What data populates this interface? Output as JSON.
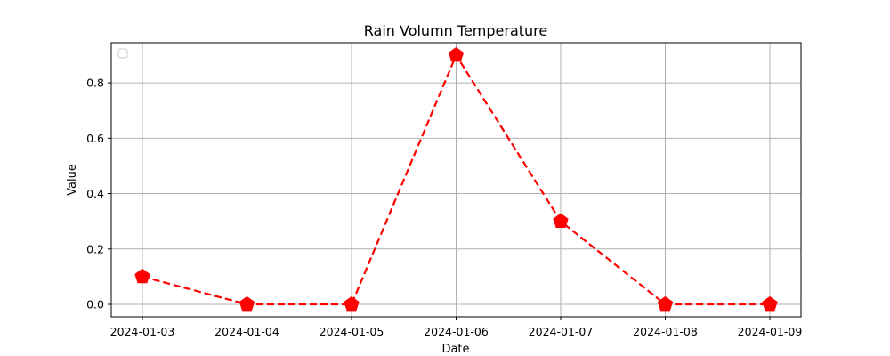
{
  "chart_data": {
    "type": "line",
    "title": "Rain Volumn Temperature",
    "xlabel": "Date",
    "ylabel": "Value",
    "categories": [
      "2024-01-03",
      "2024-01-04",
      "2024-01-05",
      "2024-01-06",
      "2024-01-07",
      "2024-01-08",
      "2024-01-09"
    ],
    "series": [
      {
        "values": [
          0.1,
          0.0,
          0.0,
          0.9,
          0.3,
          0.0,
          0.0
        ],
        "color": "#ff0000",
        "line_style": "dashed",
        "marker": "pentagon"
      }
    ],
    "ylim": [
      -0.045,
      0.945
    ],
    "y_ticks": [
      "0.0",
      "0.2",
      "0.4",
      "0.6",
      "0.8"
    ],
    "grid": true,
    "legend": "top-left (empty)"
  }
}
